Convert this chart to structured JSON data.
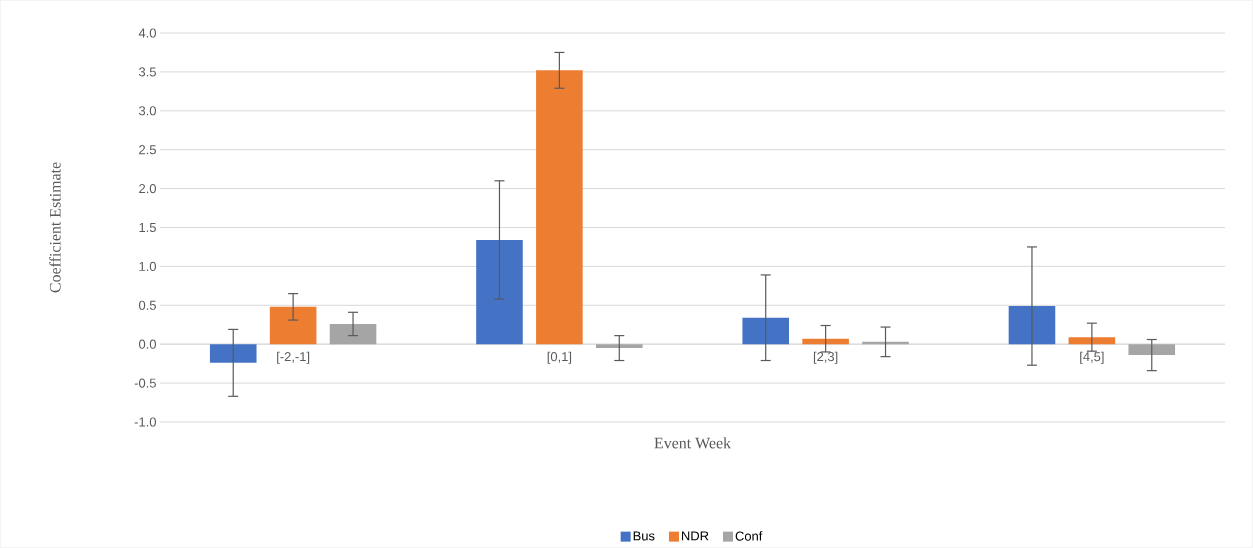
{
  "chart_data": {
    "type": "bar",
    "xlabel": "Event Week",
    "ylabel": "Coefficient Estimate",
    "categories": [
      "[-2,-1]",
      "[0,1]",
      "[2,3]",
      "[4,5]"
    ],
    "series": [
      {
        "name": "Bus",
        "color": "#4472c4",
        "values": [
          -0.24,
          1.34,
          0.34,
          0.49
        ],
        "errors": [
          0.43,
          0.76,
          0.55,
          0.76
        ]
      },
      {
        "name": "NDR",
        "color": "#ed7d31",
        "values": [
          0.48,
          3.52,
          0.07,
          0.09
        ],
        "errors": [
          0.17,
          0.23,
          0.17,
          0.18
        ]
      },
      {
        "name": "Conf",
        "color": "#a5a5a5",
        "values": [
          0.26,
          -0.05,
          0.03,
          -0.14
        ],
        "errors": [
          0.15,
          0.16,
          0.19,
          0.2
        ]
      }
    ],
    "ylim": [
      -1.0,
      4.0
    ],
    "yticks": [
      {
        "value": -1.0,
        "label": "-1.0"
      },
      {
        "value": -0.5,
        "label": "-0.5"
      },
      {
        "value": 0.0,
        "label": "0.0"
      },
      {
        "value": 0.5,
        "label": "0.5"
      },
      {
        "value": 1.0,
        "label": "1.0"
      },
      {
        "value": 1.5,
        "label": "1.5"
      },
      {
        "value": 2.0,
        "label": "2.0"
      },
      {
        "value": 2.5,
        "label": "2.5"
      },
      {
        "value": 3.0,
        "label": "3.0"
      },
      {
        "value": 3.5,
        "label": "3.5"
      },
      {
        "value": 4.0,
        "label": "4.0"
      }
    ],
    "grid": "y",
    "legend": "bottom"
  }
}
